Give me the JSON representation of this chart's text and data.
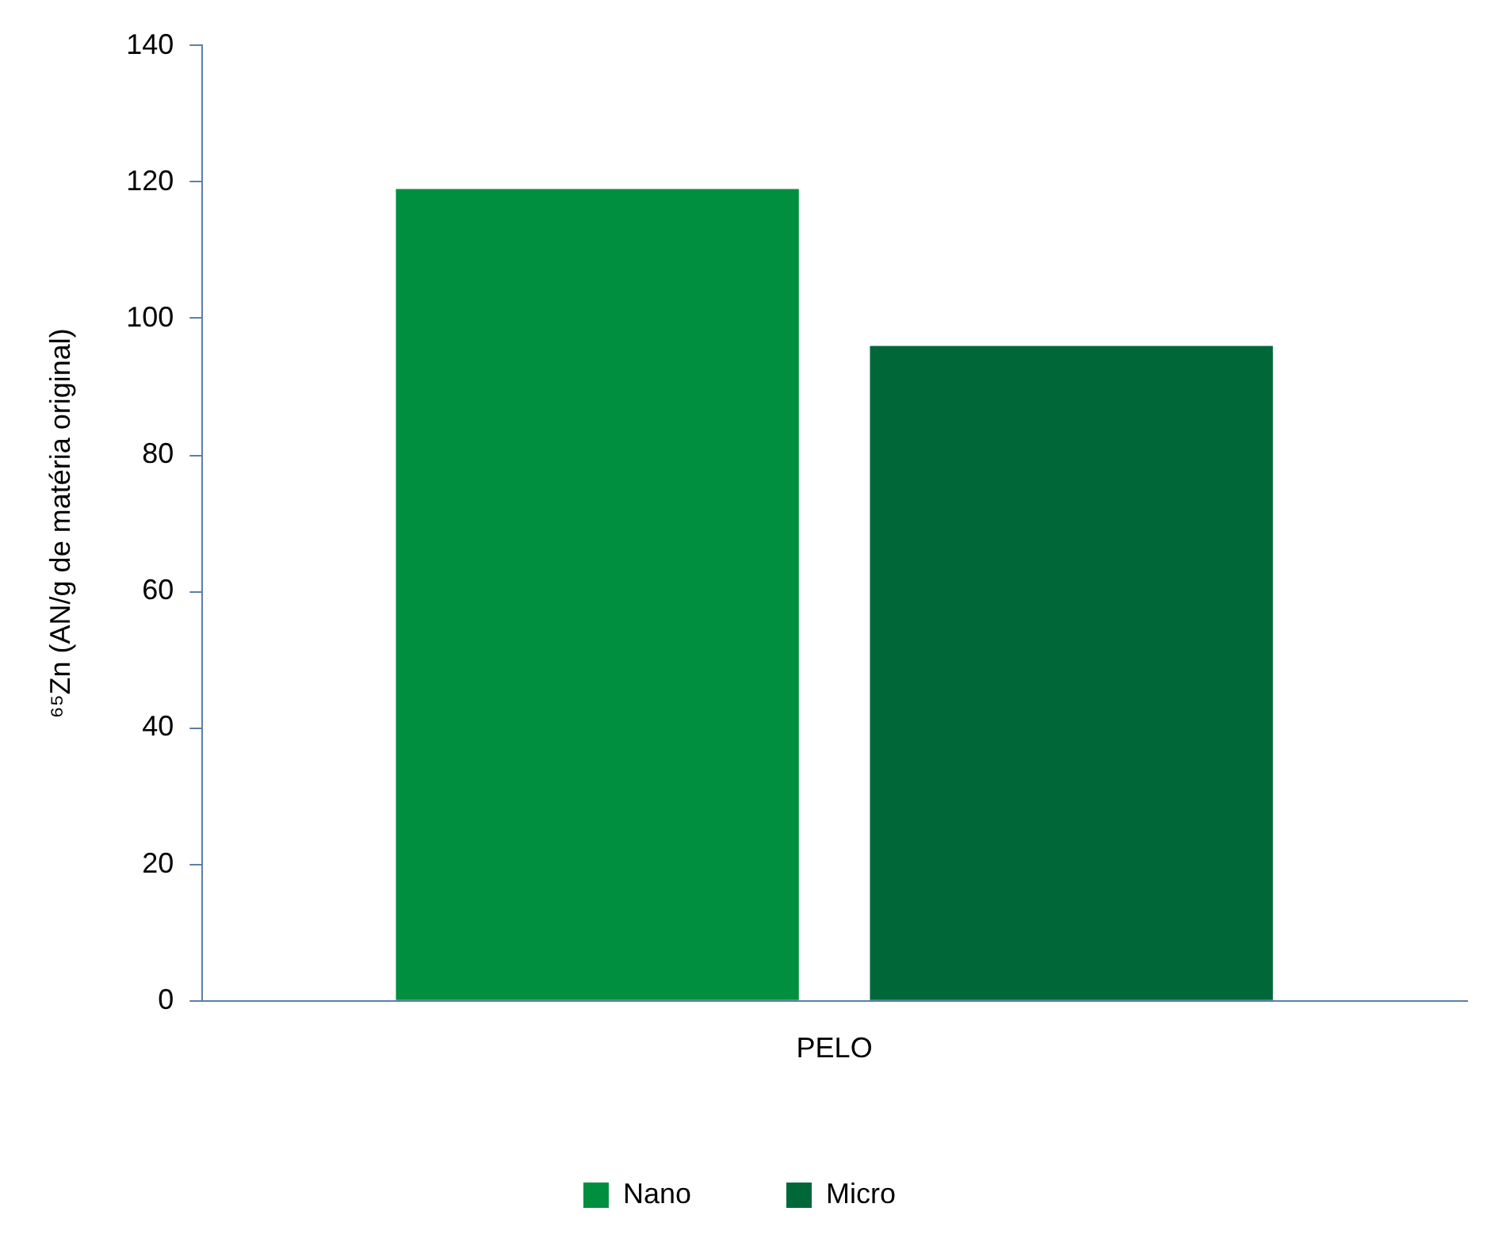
{
  "chart_data": {
    "type": "bar",
    "ylabel": "⁶⁵Zn (AN/g de matéria original)",
    "categories": [
      "PELO"
    ],
    "series": [
      {
        "name": "Nano",
        "color": "#008f3e",
        "values": [
          119
        ]
      },
      {
        "name": "Micro",
        "color": "#006838",
        "values": [
          96
        ]
      }
    ],
    "ylim": [
      0,
      140
    ],
    "yticks": [
      0,
      20,
      40,
      60,
      80,
      100,
      120,
      140
    ],
    "grid": false,
    "legend": "bottom"
  }
}
